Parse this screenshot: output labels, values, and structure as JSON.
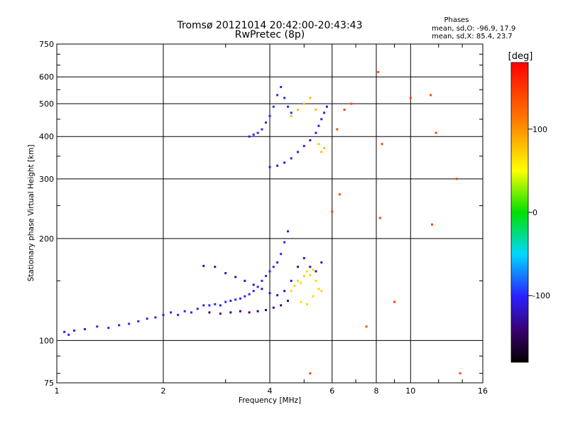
{
  "chart_data": {
    "type": "scatter",
    "title": "Tromsø 20121014 20:42:00-20:43:43",
    "subtitle": "RwPretec (8p)",
    "phase_info": {
      "heading": "Phases",
      "line_o": "mean, sd,O: -96.9, 17.9",
      "line_x": "mean, sd,X:  85.4, 23.7"
    },
    "xlabel": "Frequency [MHz]",
    "ylabel": "Stationary phase Virtual Height [km]",
    "x_scale": "log",
    "y_scale": "log",
    "xlim": [
      1,
      16
    ],
    "ylim": [
      75,
      750
    ],
    "x_ticks": [
      1,
      2,
      4,
      6,
      8,
      10,
      16
    ],
    "x_tick_labels": [
      "1",
      "2",
      "4",
      "6",
      "8",
      "10",
      "16"
    ],
    "y_ticks": [
      75,
      100,
      200,
      300,
      400,
      500,
      600,
      750
    ],
    "y_tick_labels": [
      "75",
      "100",
      "200",
      "300",
      "400",
      "500",
      "600",
      "750"
    ],
    "grid": true,
    "colorbar": {
      "unit": "[deg]",
      "range": [
        -180,
        180
      ],
      "tick_values": [
        100,
        0,
        -100
      ],
      "tick_labels": [
        "100",
        "0",
        "-100"
      ]
    },
    "series": [
      {
        "trace": "o-mode E/F1 traces",
        "phase_deg": -100,
        "points": [
          [
            1.05,
            106
          ],
          [
            1.08,
            104
          ],
          [
            1.12,
            107
          ],
          [
            1.2,
            108
          ],
          [
            1.3,
            110
          ],
          [
            1.4,
            109
          ],
          [
            1.5,
            111
          ],
          [
            1.6,
            112
          ],
          [
            1.7,
            114
          ],
          [
            1.8,
            116
          ],
          [
            1.9,
            117
          ],
          [
            2.0,
            119
          ],
          [
            2.1,
            121
          ],
          [
            2.2,
            119
          ],
          [
            2.3,
            122
          ],
          [
            2.4,
            121
          ],
          [
            2.5,
            124
          ],
          [
            2.6,
            127
          ],
          [
            2.7,
            127
          ],
          [
            2.8,
            128
          ],
          [
            2.9,
            127
          ],
          [
            3.0,
            130
          ],
          [
            3.1,
            131
          ],
          [
            3.2,
            132
          ],
          [
            3.3,
            133
          ],
          [
            3.4,
            135
          ],
          [
            3.5,
            137
          ],
          [
            3.6,
            140
          ],
          [
            3.7,
            144
          ],
          [
            3.8,
            150
          ],
          [
            3.9,
            155
          ],
          [
            4.0,
            160
          ],
          [
            4.1,
            165
          ],
          [
            4.2,
            170
          ],
          [
            4.3,
            180
          ],
          [
            4.4,
            195
          ],
          [
            4.5,
            210
          ]
        ]
      },
      {
        "trace": "o-mode lower trace",
        "phase_deg": -140,
        "points": [
          [
            2.7,
            121
          ],
          [
            2.9,
            120
          ],
          [
            3.1,
            121
          ],
          [
            3.3,
            122
          ],
          [
            3.5,
            121
          ],
          [
            3.7,
            122
          ],
          [
            3.9,
            123
          ],
          [
            4.1,
            125
          ],
          [
            4.3,
            127
          ],
          [
            4.5,
            131
          ]
        ]
      },
      {
        "trace": "o-mode F1 arc",
        "phase_deg": -120,
        "points": [
          [
            2.6,
            166
          ],
          [
            2.8,
            165
          ],
          [
            3.0,
            158
          ],
          [
            3.2,
            154
          ],
          [
            3.4,
            150
          ],
          [
            3.6,
            146
          ],
          [
            3.8,
            142
          ],
          [
            4.0,
            138
          ],
          [
            4.2,
            136
          ],
          [
            4.4,
            140
          ],
          [
            4.6,
            150
          ],
          [
            4.8,
            165
          ],
          [
            5.0,
            175
          ],
          [
            5.2,
            165
          ],
          [
            5.4,
            160
          ],
          [
            5.6,
            170
          ]
        ]
      },
      {
        "trace": "x-mode near foF1",
        "phase_deg": 70,
        "points": [
          [
            4.6,
            140
          ],
          [
            4.7,
            145
          ],
          [
            4.8,
            150
          ],
          [
            4.9,
            148
          ],
          [
            5.0,
            155
          ],
          [
            5.1,
            160
          ],
          [
            5.2,
            156
          ],
          [
            5.3,
            162
          ],
          [
            5.4,
            150
          ],
          [
            5.5,
            142
          ],
          [
            4.9,
            130
          ],
          [
            5.1,
            128
          ],
          [
            5.3,
            135
          ],
          [
            5.6,
            140
          ]
        ]
      },
      {
        "trace": "o-mode F2 trace",
        "phase_deg": -100,
        "points": [
          [
            3.5,
            400
          ],
          [
            3.6,
            405
          ],
          [
            3.7,
            410
          ],
          [
            3.8,
            420
          ],
          [
            3.9,
            440
          ],
          [
            4.0,
            460
          ],
          [
            4.1,
            490
          ],
          [
            4.2,
            530
          ],
          [
            4.3,
            560
          ],
          [
            4.4,
            520
          ],
          [
            4.5,
            490
          ],
          [
            4.6,
            470
          ]
        ]
      },
      {
        "trace": "o-mode F2 lower branch",
        "phase_deg": -110,
        "points": [
          [
            4.0,
            325
          ],
          [
            4.2,
            328
          ],
          [
            4.4,
            335
          ],
          [
            4.6,
            345
          ],
          [
            4.8,
            360
          ],
          [
            5.0,
            375
          ],
          [
            5.2,
            390
          ],
          [
            5.4,
            410
          ],
          [
            5.5,
            430
          ],
          [
            5.6,
            450
          ],
          [
            5.7,
            470
          ],
          [
            5.8,
            490
          ]
        ]
      },
      {
        "trace": "x-mode F2",
        "phase_deg": 80,
        "points": [
          [
            4.6,
            460
          ],
          [
            4.8,
            480
          ],
          [
            5.0,
            500
          ],
          [
            5.2,
            520
          ],
          [
            5.4,
            480
          ],
          [
            5.5,
            380
          ],
          [
            5.6,
            360
          ],
          [
            5.7,
            370
          ]
        ]
      },
      {
        "trace": "scattered echoes",
        "phase_deg": 140,
        "points": [
          [
            6.2,
            420
          ],
          [
            6.5,
            480
          ],
          [
            6.8,
            500
          ],
          [
            8.1,
            620
          ],
          [
            8.3,
            380
          ],
          [
            10.0,
            520
          ],
          [
            11.4,
            530
          ],
          [
            11.8,
            410
          ],
          [
            13.5,
            300
          ],
          [
            8.2,
            230
          ],
          [
            9.0,
            130
          ],
          [
            11.5,
            220
          ],
          [
            13.8,
            80
          ],
          [
            6.3,
            270
          ],
          [
            6.0,
            240
          ],
          [
            7.5,
            110
          ],
          [
            5.2,
            80
          ]
        ]
      }
    ]
  }
}
